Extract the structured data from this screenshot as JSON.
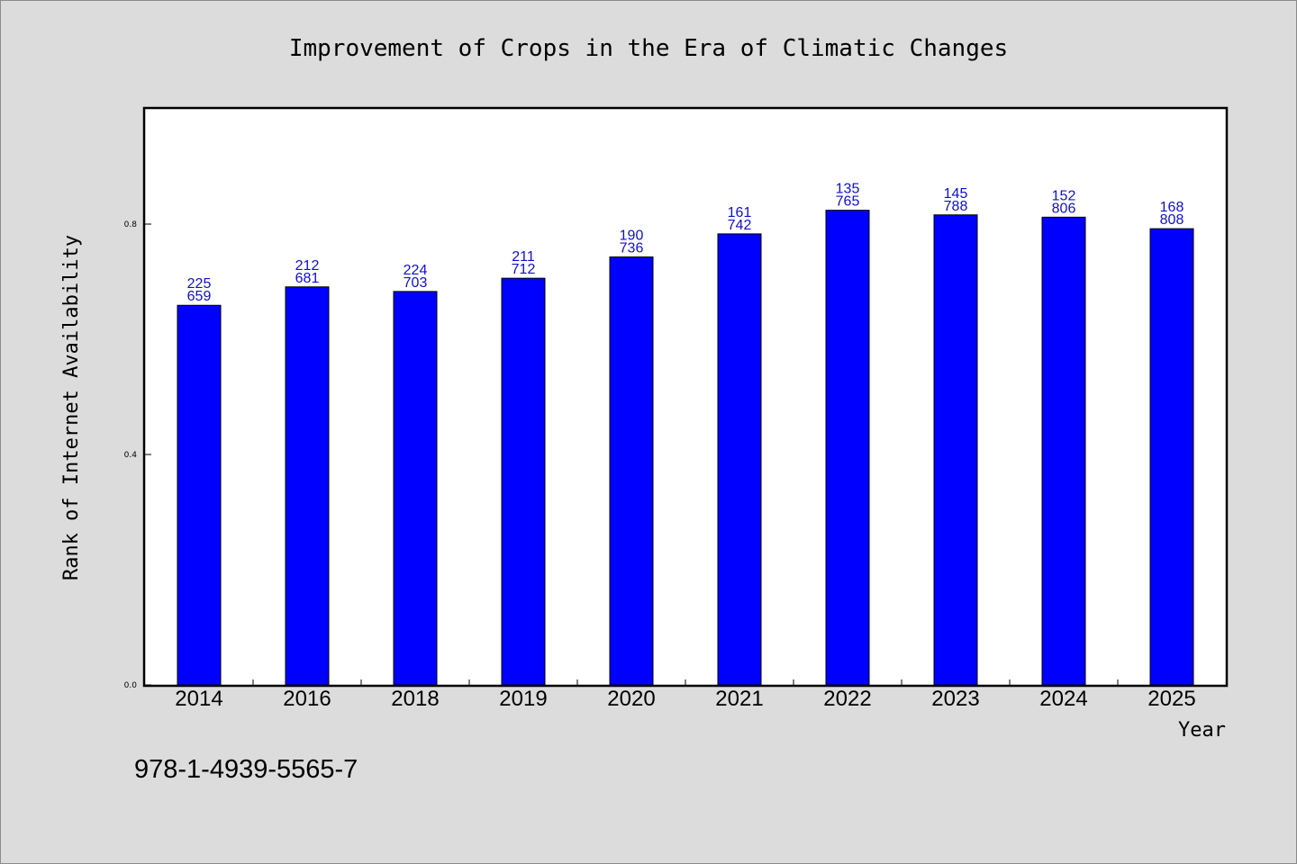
{
  "chart_data": {
    "type": "bar",
    "title": "Improvement of Crops in the Era of Climatic Changes",
    "xlabel": "Year",
    "ylabel": "Rank of Internet Availability",
    "categories": [
      "2014",
      "2016",
      "2018",
      "2019",
      "2020",
      "2021",
      "2022",
      "2023",
      "2024",
      "2025"
    ],
    "values": [
      0.659,
      0.681,
      0.703,
      0.712,
      0.736,
      0.742,
      0.765,
      0.788,
      0.806,
      0.808
    ],
    "bar_heights": [
      0.659,
      0.691,
      0.683,
      0.706,
      0.743,
      0.783,
      0.824,
      0.816,
      0.812,
      0.792
    ],
    "label_top": [
      "225",
      "212",
      "224",
      "211",
      "190",
      "161",
      "135",
      "145",
      "152",
      "168"
    ],
    "label_bottom": [
      "659",
      "681",
      "703",
      "712",
      "736",
      "742",
      "765",
      "788",
      "806",
      "808"
    ],
    "yticks": [
      "0.0",
      "0.4",
      "0.8"
    ],
    "ytick_values": [
      0.0,
      0.4,
      0.8
    ],
    "ylim": [
      0,
      1.0
    ],
    "grid": false,
    "bar_color": "#0000ff",
    "label_color": "#1010c8"
  },
  "footer": {
    "isbn": "978-1-4939-5565-7"
  }
}
